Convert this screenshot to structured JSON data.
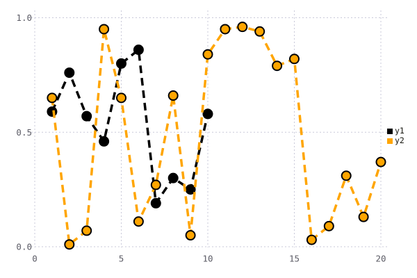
{
  "figure": {
    "background": "#ffffff",
    "grid_color": "#c9c9d9",
    "tick_label_color": "#5c5c66"
  },
  "legend": {
    "position": "right",
    "items": [
      {
        "label": "y1",
        "color": "#000000"
      },
      {
        "label": "y2",
        "color": "#ffa500"
      }
    ]
  },
  "chart_data": {
    "type": "line",
    "title": "",
    "xlabel": "",
    "ylabel": "",
    "grid": true,
    "line_style": "dashed",
    "marker": "circle",
    "xlim": [
      0,
      20.4
    ],
    "ylim": [
      0,
      1.0
    ],
    "xticks": {
      "values": [
        0,
        5,
        10,
        15,
        20
      ],
      "labels": [
        "0",
        "5",
        "10",
        "15",
        "20"
      ]
    },
    "yticks": {
      "values": [
        0,
        0.5,
        1.0
      ],
      "labels": [
        "0.0",
        "0.5",
        "1.0"
      ]
    },
    "series": [
      {
        "name": "y1",
        "color": "#000000",
        "marker_edge_color": "#000000",
        "x": [
          1,
          2,
          3,
          4,
          5,
          6,
          7,
          8,
          9,
          10
        ],
        "values": [
          0.59,
          0.76,
          0.57,
          0.46,
          0.8,
          0.86,
          0.19,
          0.3,
          0.25,
          0.58
        ]
      },
      {
        "name": "y2",
        "color": "#ffa500",
        "marker_edge_color": "#000000",
        "x": [
          1,
          2,
          3,
          4,
          5,
          6,
          7,
          8,
          9,
          10,
          11,
          12,
          13,
          14,
          15,
          16,
          17,
          18,
          19,
          20
        ],
        "values": [
          0.65,
          0.01,
          0.07,
          0.95,
          0.65,
          0.11,
          0.27,
          0.66,
          0.05,
          0.84,
          0.95,
          0.96,
          0.94,
          0.79,
          0.82,
          0.03,
          0.09,
          0.31,
          0.13,
          0.37
        ]
      }
    ]
  }
}
